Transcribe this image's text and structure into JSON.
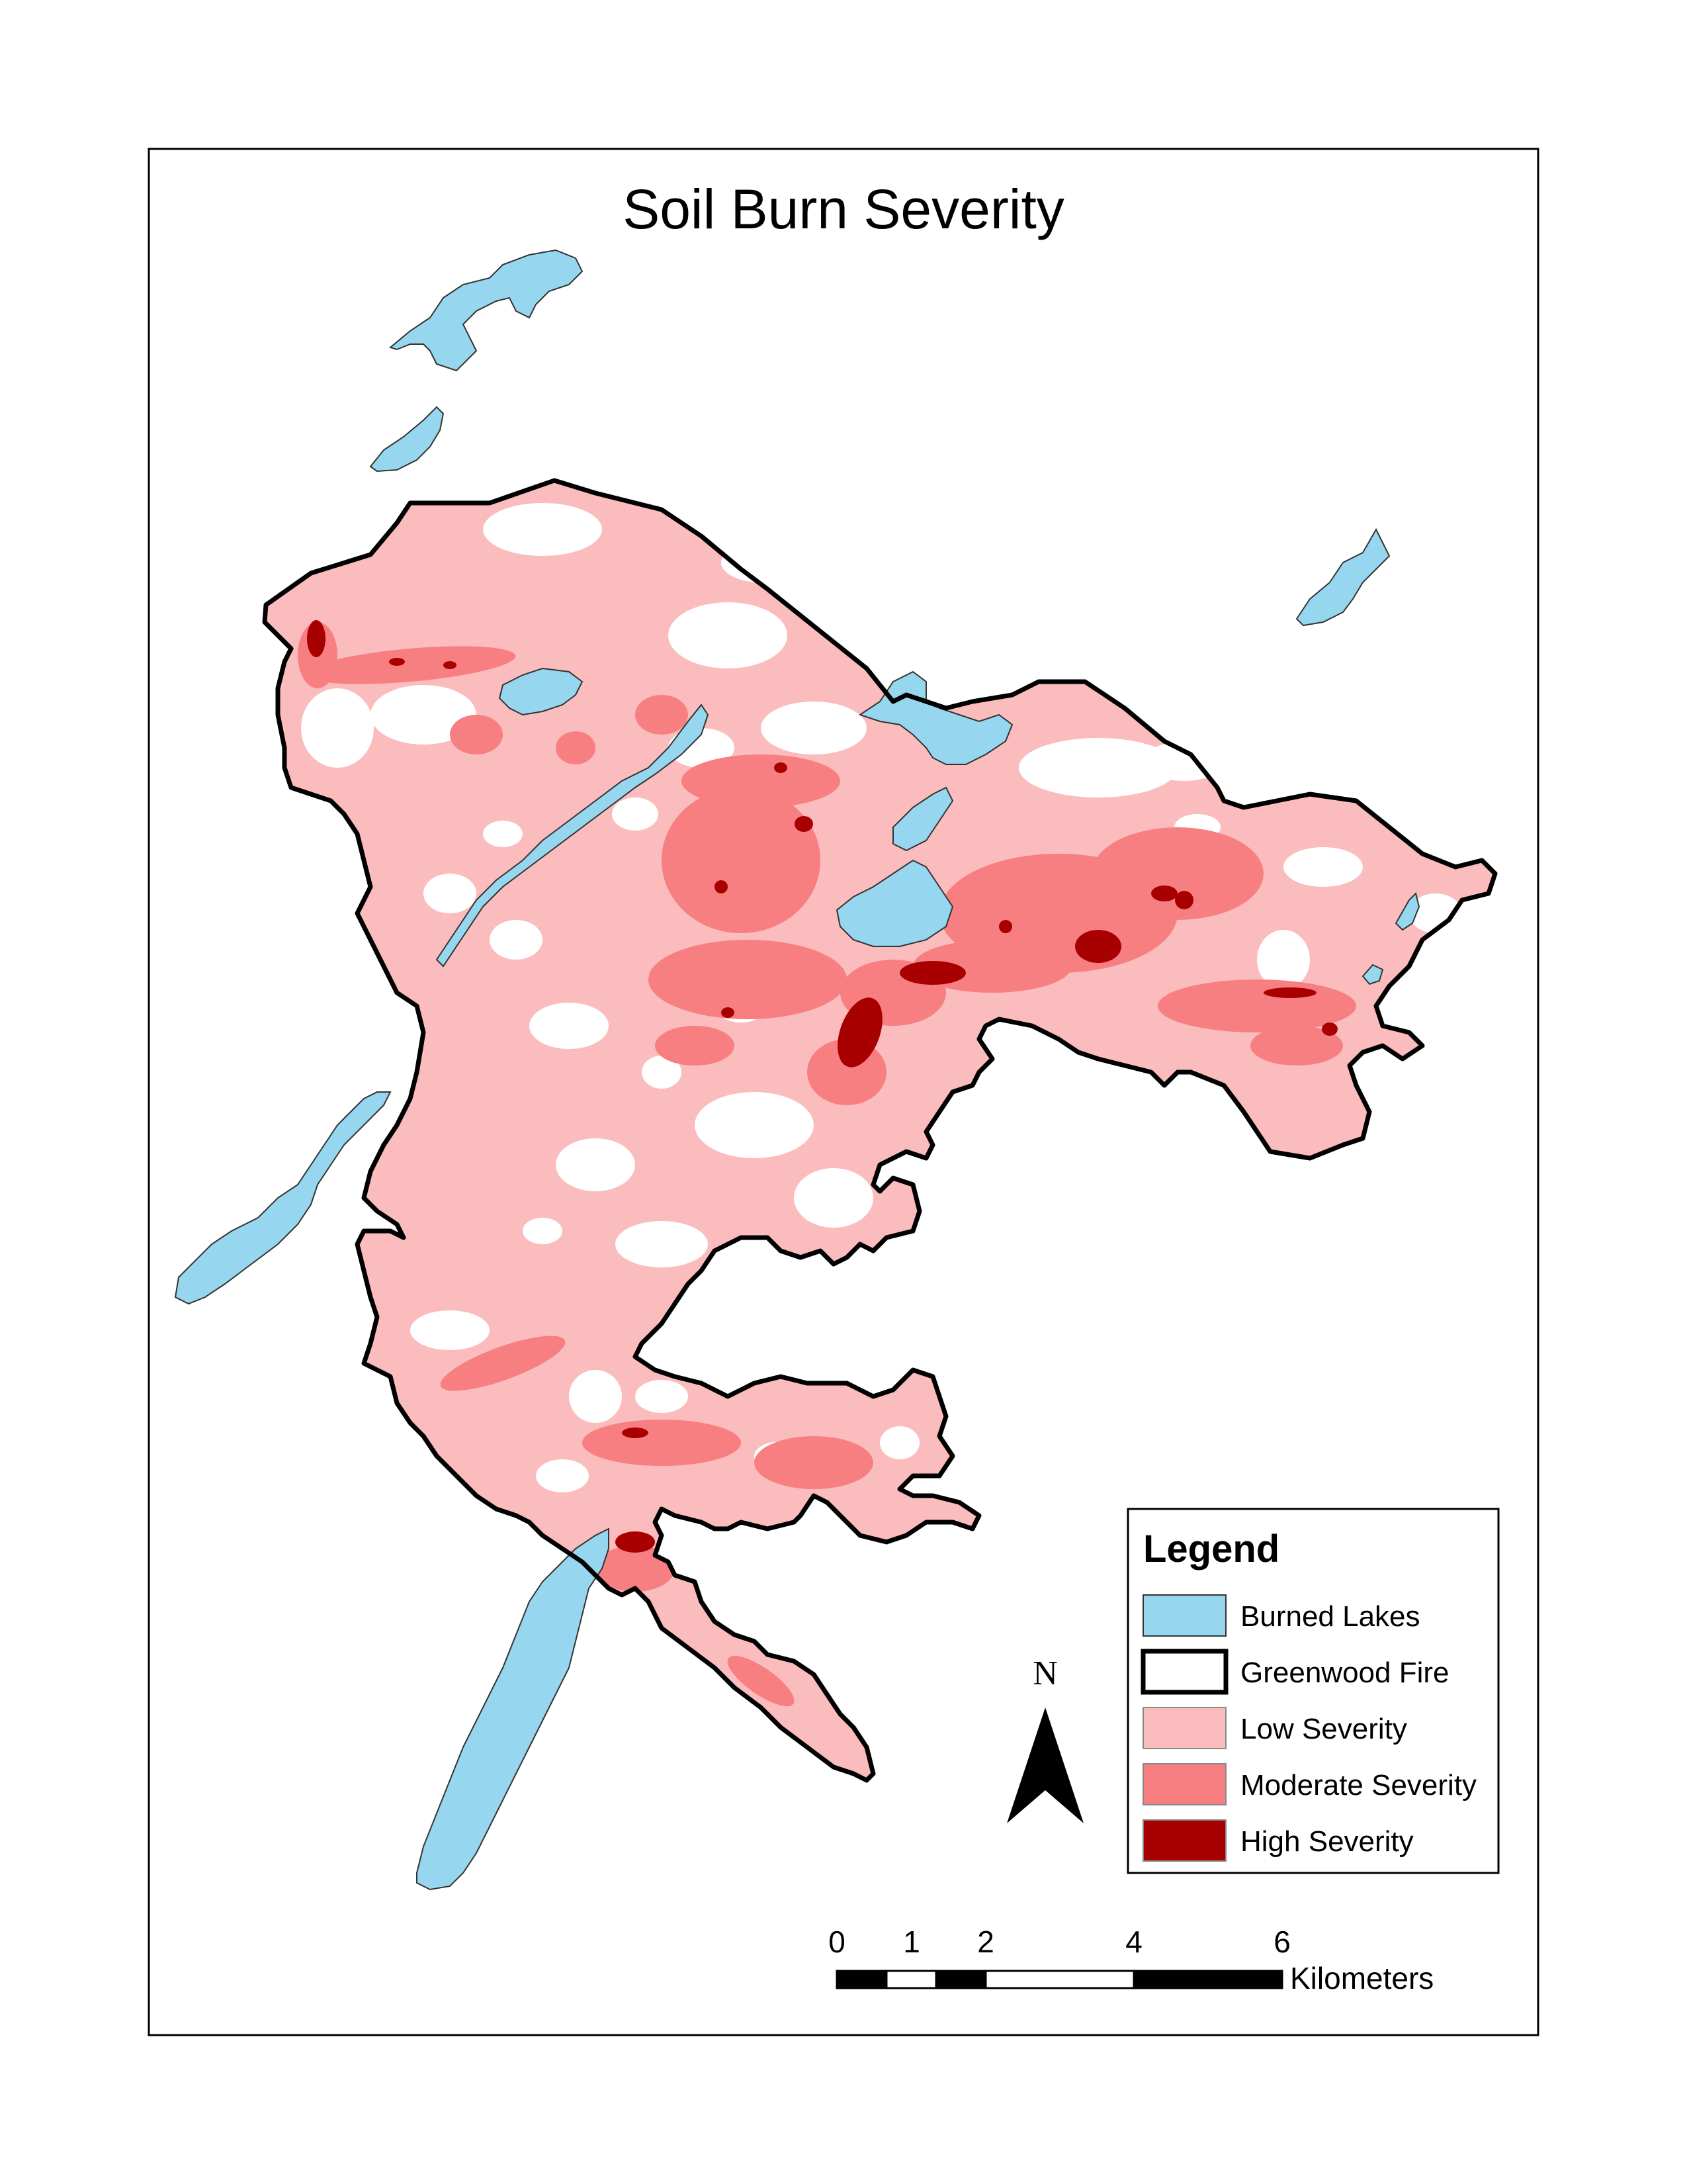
{
  "map": {
    "title": "Soil Burn Severity"
  },
  "legend": {
    "title": "Legend",
    "items": [
      {
        "label": "Burned Lakes",
        "color": "#96d6ee"
      },
      {
        "label": "Greenwood Fire",
        "color": "#ffffff"
      },
      {
        "label": "Low Severity",
        "color": "#fbbcbd"
      },
      {
        "label": "Moderate Severity",
        "color": "#f77f81"
      },
      {
        "label": "High Severity",
        "color": "#a80000"
      }
    ]
  },
  "north_arrow": {
    "letter": "N"
  },
  "scale_bar": {
    "ticks": [
      "0",
      "1",
      "2",
      "4",
      "6"
    ],
    "unit": "Kilometers"
  },
  "colors": {
    "lake": "#96d6ee",
    "low": "#fbbcbd",
    "moderate": "#f77f81",
    "high": "#a80000",
    "outline": "#000000"
  }
}
